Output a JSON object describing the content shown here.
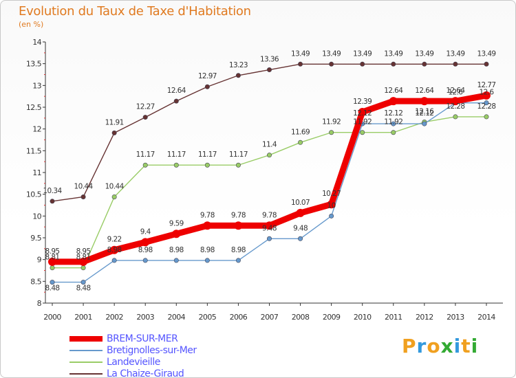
{
  "header": {
    "title": "Evolution du Taux de Taxe d'Habitation",
    "subtitle": "(en %)"
  },
  "brand": {
    "letters": [
      "P",
      "r",
      "o",
      "x",
      "i",
      "t",
      "i"
    ],
    "colors": [
      "#f0a020",
      "#3399dd",
      "#f0a020",
      "#33aa33",
      "#3399dd",
      "#f0a020",
      "#33aa33"
    ]
  },
  "chart_data": {
    "type": "line",
    "title": "Evolution du Taux de Taxe d'Habitation",
    "ylabel": "(en %)",
    "ylim": [
      8,
      14
    ],
    "yticks": [
      "8",
      "8.5",
      "9",
      "9.5",
      "10",
      "10.5",
      "11",
      "11.5",
      "12",
      "12.5",
      "13",
      "13.5",
      "14"
    ],
    "x": [
      "2000",
      "2001",
      "2002",
      "2003",
      "2004",
      "2005",
      "2006",
      "2007",
      "2008",
      "2009",
      "2010",
      "2011",
      "2012",
      "2013",
      "2014"
    ],
    "grid": false,
    "legend": "bottom-left",
    "series": [
      {
        "name": "BREM-SUR-MER",
        "color": "#ee0000",
        "values": [
          8.95,
          8.95,
          9.22,
          9.4,
          9.59,
          9.78,
          9.78,
          9.78,
          10.07,
          10.27,
          12.39,
          12.64,
          12.64,
          12.64,
          12.77
        ],
        "labels": [
          "8.95",
          "8.95",
          "9.22",
          "9.4",
          "9.59",
          "9.78",
          "9.78",
          "9.78",
          "10.07",
          "10.27",
          "12.39",
          "12.64",
          "12.64",
          "12.64",
          "12.77"
        ]
      },
      {
        "name": "Bretignolles-sur-Mer",
        "color": "#6699cc",
        "values": [
          8.48,
          8.48,
          8.98,
          8.98,
          8.98,
          8.98,
          8.98,
          9.48,
          9.48,
          10,
          12.12,
          12.12,
          12.12,
          12.6,
          12.6
        ],
        "labels": [
          "8.48",
          "8.48",
          "8.98",
          "8.98",
          "8.98",
          "8.98",
          "8.98",
          "9.48",
          "9.48",
          "10",
          "12.12",
          "12.12",
          "12.12",
          "12.6",
          "12.6"
        ]
      },
      {
        "name": "Landevieille",
        "color": "#99cc66",
        "values": [
          8.81,
          8.81,
          10.44,
          11.17,
          11.17,
          11.17,
          11.17,
          11.4,
          11.69,
          11.92,
          11.92,
          11.92,
          12.16,
          12.28,
          12.28
        ],
        "labels": [
          "8.81",
          "8.81",
          "10.44",
          "11.17",
          "11.17",
          "11.17",
          "11.17",
          "11.4",
          "11.69",
          "11.92",
          "11.92",
          "11.92",
          "12.16",
          "12.28",
          "12.28"
        ]
      },
      {
        "name": "La Chaize-Giraud",
        "color": "#663333",
        "values": [
          10.34,
          10.44,
          11.91,
          12.27,
          12.64,
          12.97,
          13.23,
          13.36,
          13.49,
          13.49,
          13.49,
          13.49,
          13.49,
          13.49,
          13.49
        ],
        "labels": [
          "10.34",
          "10.44",
          "11.91",
          "12.27",
          "12.64",
          "12.97",
          "13.23",
          "13.36",
          "13.49",
          "13.49",
          "13.49",
          "13.49",
          "13.49",
          "13.49",
          "13.49"
        ]
      }
    ]
  }
}
